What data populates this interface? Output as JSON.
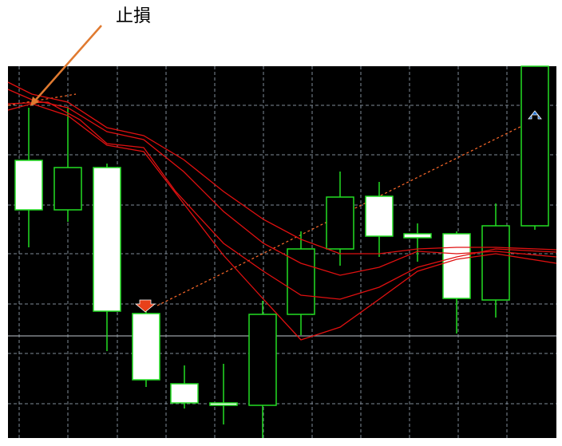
{
  "annotation": "止損"
}
